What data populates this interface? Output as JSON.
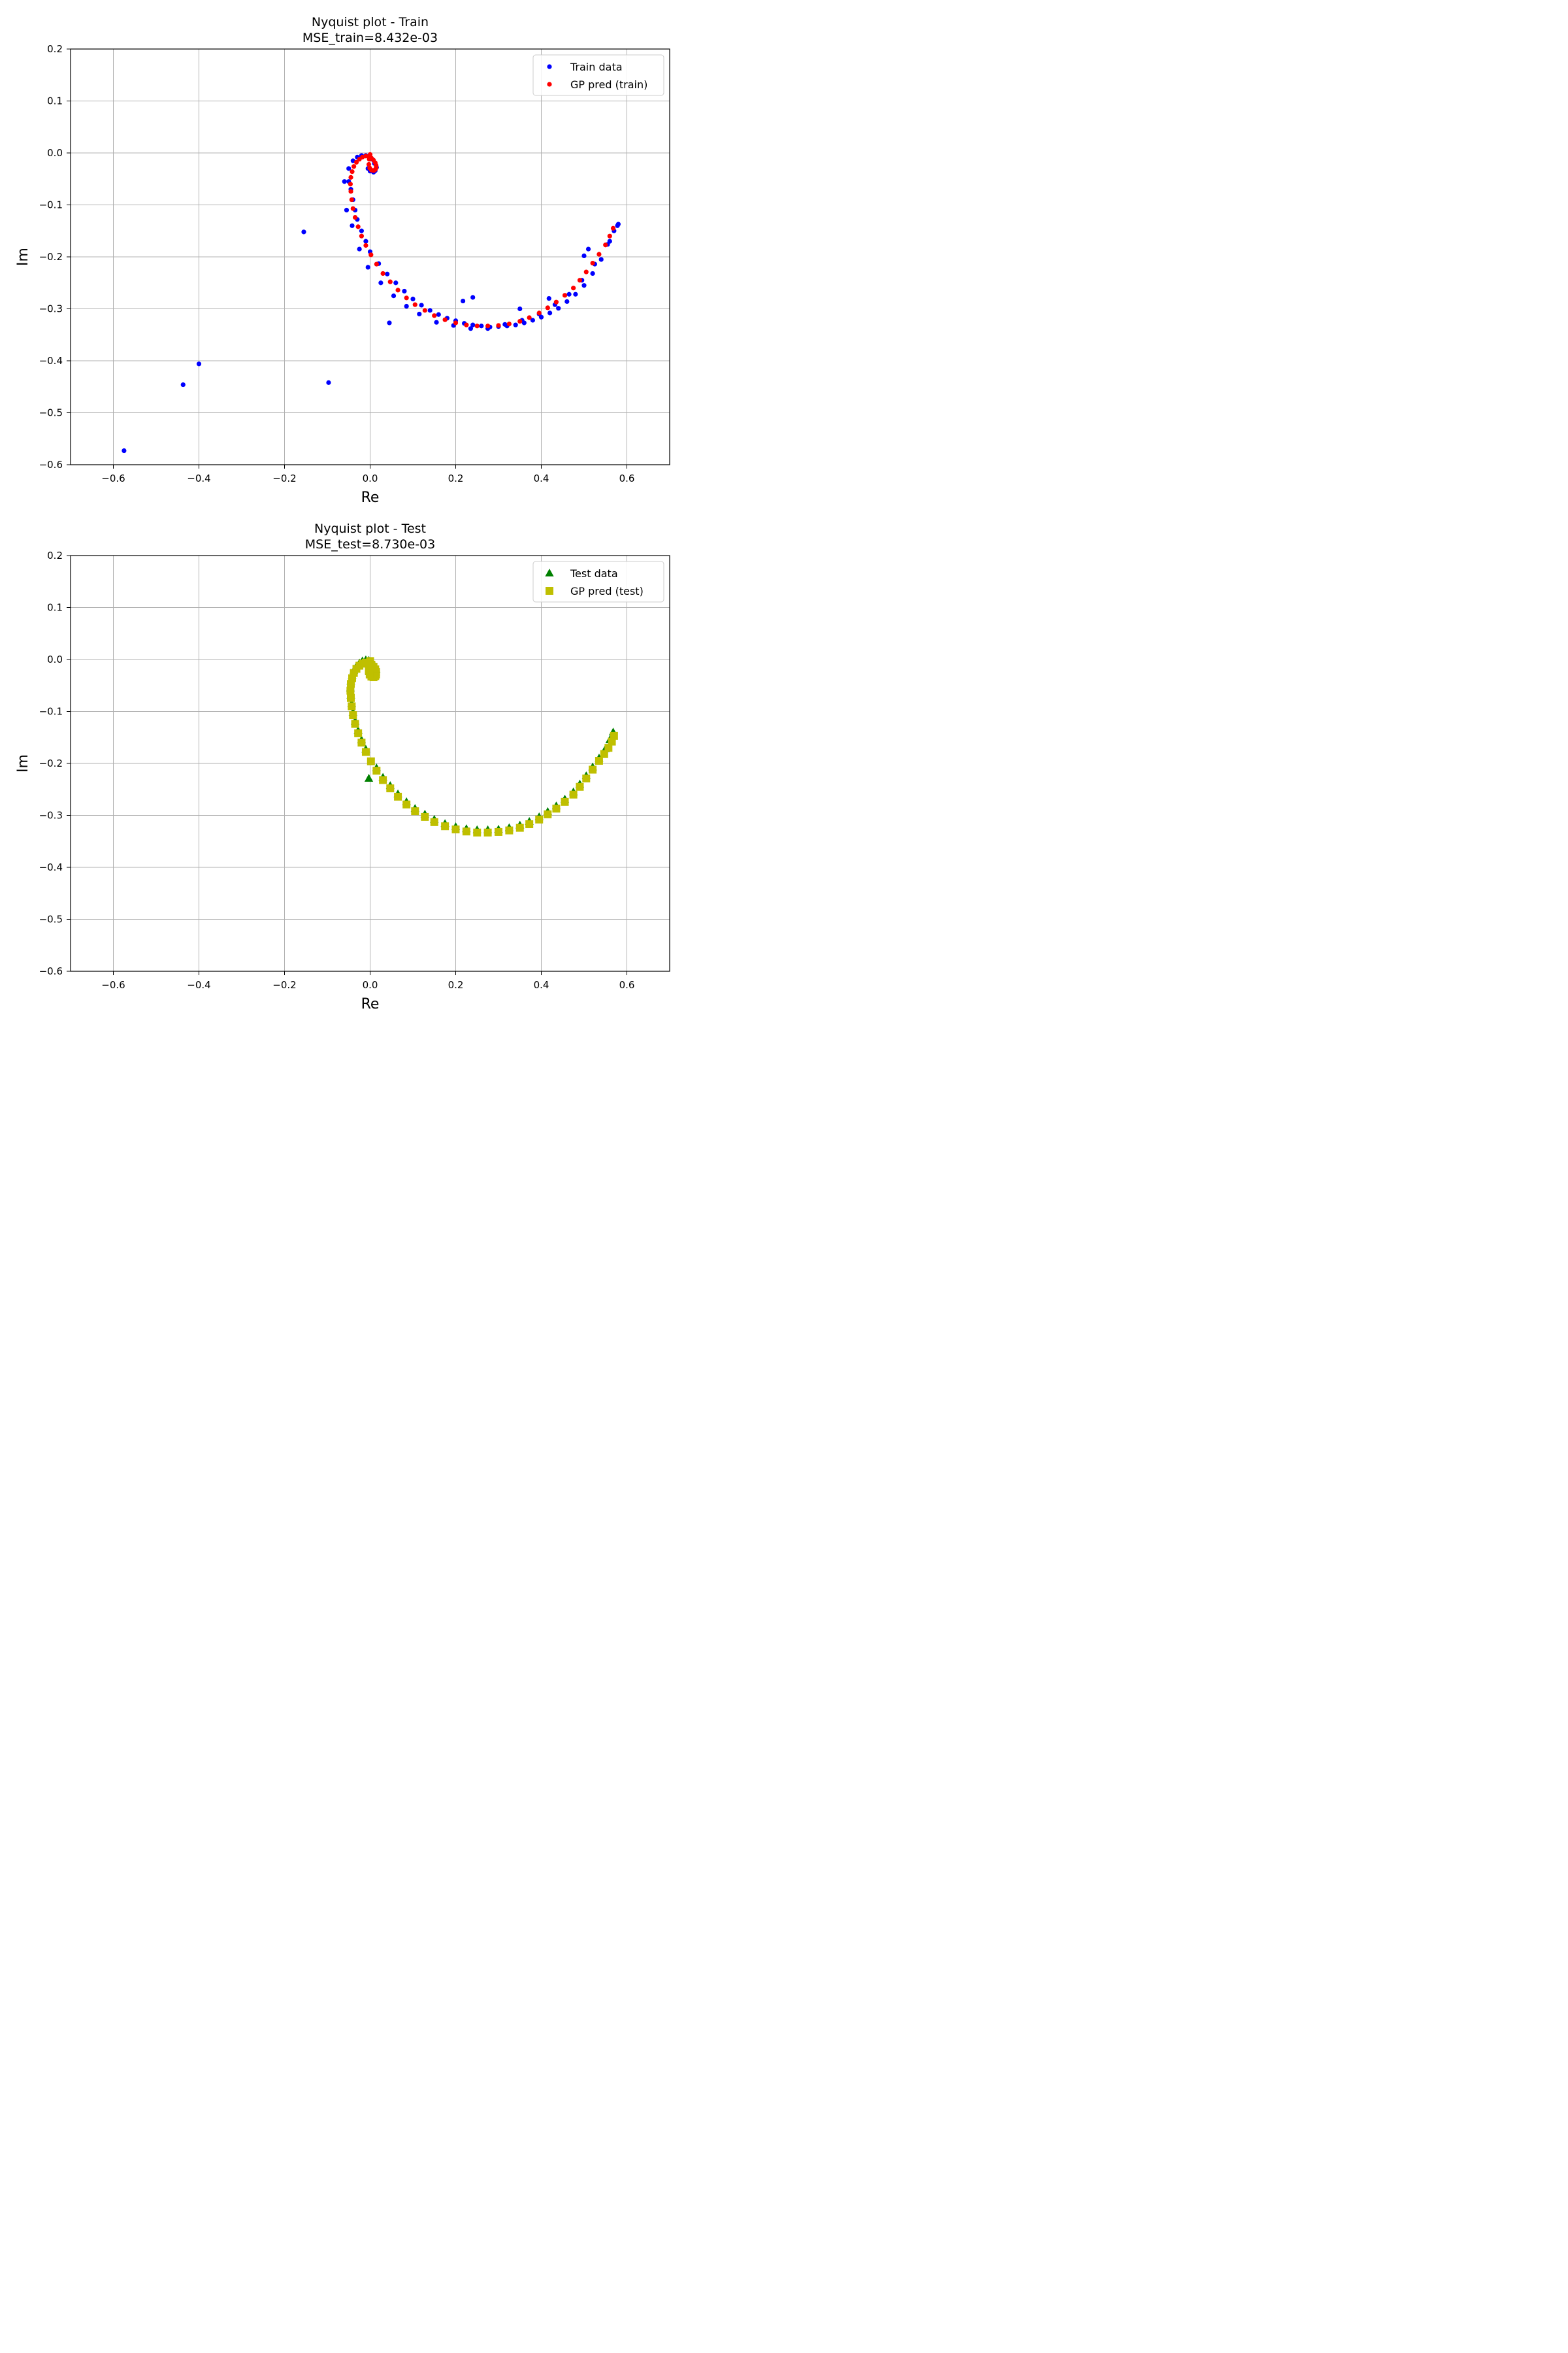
{
  "chart_data": [
    {
      "type": "scatter",
      "title": "Nyquist plot - Train",
      "subtitle": "MSE_train=8.432e-03",
      "xlabel": "Re",
      "ylabel": "Im",
      "xlim": [
        -0.7,
        0.7
      ],
      "ylim": [
        -0.6,
        0.2
      ],
      "xticks": [
        -0.6,
        -0.4,
        -0.2,
        0.0,
        0.2,
        0.4,
        0.6
      ],
      "xtick_labels": [
        "−0.6",
        "−0.4",
        "−0.2",
        "0.0",
        "0.2",
        "0.4",
        "0.6"
      ],
      "yticks": [
        0.2,
        0.1,
        0.0,
        -0.1,
        -0.2,
        -0.3,
        -0.4,
        -0.5,
        -0.6
      ],
      "ytick_labels": [
        "0.2",
        "0.1",
        "0.0",
        "−0.1",
        "−0.2",
        "−0.3",
        "−0.4",
        "−0.5",
        "−0.6"
      ],
      "grid": true,
      "legend_position": "top-right",
      "series": [
        {
          "name": "Train data",
          "marker": "circle",
          "color": "#0000ff",
          "x": [
            -0.575,
            -0.437,
            -0.4,
            -0.155,
            -0.097,
            0.045,
            0.217,
            0.24,
            0.35,
            0.418,
            0.5,
            0.51,
            0.58,
            0.57,
            0.56,
            0.54,
            0.52,
            0.5,
            0.48,
            0.46,
            0.44,
            0.42,
            0.4,
            0.38,
            0.36,
            0.34,
            0.32,
            0.3,
            0.28,
            0.26,
            0.24,
            0.22,
            0.2,
            0.18,
            0.16,
            0.14,
            0.12,
            0.1,
            0.08,
            0.06,
            0.04,
            0.02,
            0.0,
            -0.01,
            -0.02,
            -0.03,
            -0.035,
            -0.04,
            -0.045,
            -0.05,
            -0.055,
            -0.06,
            -0.05,
            -0.04,
            -0.03,
            -0.02,
            -0.01,
            0.0,
            0.005,
            0.01,
            0.015,
            0.012,
            0.008,
            0.0,
            -0.005,
            0.578,
            0.555,
            0.525,
            0.495,
            0.465,
            0.432,
            0.395,
            0.355,
            0.315,
            0.275,
            0.235,
            0.195,
            0.155,
            0.115,
            0.085,
            0.055,
            0.025,
            -0.005,
            -0.025,
            -0.042
          ],
          "y": [
            -0.573,
            -0.446,
            -0.406,
            -0.152,
            -0.442,
            -0.327,
            -0.285,
            -0.278,
            -0.3,
            -0.28,
            -0.198,
            -0.185,
            -0.137,
            -0.15,
            -0.17,
            -0.205,
            -0.232,
            -0.255,
            -0.272,
            -0.286,
            -0.299,
            -0.308,
            -0.316,
            -0.322,
            -0.327,
            -0.331,
            -0.333,
            -0.334,
            -0.335,
            -0.333,
            -0.331,
            -0.328,
            -0.323,
            -0.318,
            -0.311,
            -0.303,
            -0.293,
            -0.281,
            -0.266,
            -0.25,
            -0.233,
            -0.213,
            -0.19,
            -0.17,
            -0.15,
            -0.128,
            -0.11,
            -0.09,
            -0.07,
            -0.055,
            -0.11,
            -0.055,
            -0.03,
            -0.015,
            -0.008,
            -0.005,
            -0.005,
            -0.01,
            -0.012,
            -0.02,
            -0.028,
            -0.034,
            -0.037,
            -0.035,
            -0.03,
            -0.14,
            -0.176,
            -0.214,
            -0.245,
            -0.272,
            -0.292,
            -0.31,
            -0.322,
            -0.33,
            -0.338,
            -0.338,
            -0.332,
            -0.326,
            -0.31,
            -0.295,
            -0.275,
            -0.25,
            -0.22,
            -0.185,
            -0.14
          ]
        },
        {
          "name": "GP pred (train)",
          "marker": "circle",
          "color": "#ff0000",
          "x": [
            0.568,
            0.56,
            0.55,
            0.535,
            0.52,
            0.505,
            0.49,
            0.475,
            0.455,
            0.435,
            0.415,
            0.395,
            0.372,
            0.35,
            0.325,
            0.3,
            0.275,
            0.25,
            0.225,
            0.2,
            0.175,
            0.15,
            0.128,
            0.105,
            0.085,
            0.065,
            0.047,
            0.03,
            0.015,
            0.002,
            -0.01,
            -0.02,
            -0.028,
            -0.035,
            -0.04,
            -0.043,
            -0.045,
            -0.046,
            -0.045,
            -0.042,
            -0.038,
            -0.032,
            -0.025,
            -0.018,
            -0.01,
            -0.003,
            0.003,
            0.008,
            0.012,
            0.014,
            0.014,
            0.012,
            0.008,
            0.003,
            -0.001,
            -0.003,
            -0.002,
            0.0
          ],
          "y": [
            -0.145,
            -0.16,
            -0.177,
            -0.195,
            -0.212,
            -0.229,
            -0.245,
            -0.26,
            -0.274,
            -0.287,
            -0.298,
            -0.308,
            -0.317,
            -0.324,
            -0.329,
            -0.332,
            -0.333,
            -0.333,
            -0.331,
            -0.327,
            -0.321,
            -0.313,
            -0.303,
            -0.292,
            -0.279,
            -0.264,
            -0.248,
            -0.232,
            -0.214,
            -0.196,
            -0.178,
            -0.16,
            -0.142,
            -0.124,
            -0.107,
            -0.09,
            -0.074,
            -0.06,
            -0.047,
            -0.036,
            -0.026,
            -0.018,
            -0.012,
            -0.008,
            -0.006,
            -0.007,
            -0.01,
            -0.014,
            -0.019,
            -0.024,
            -0.029,
            -0.032,
            -0.034,
            -0.033,
            -0.029,
            -0.022,
            -0.012,
            -0.003
          ]
        }
      ]
    },
    {
      "type": "scatter",
      "title": "Nyquist plot - Test",
      "subtitle": "MSE_test=8.730e-03",
      "xlabel": "Re",
      "ylabel": "Im",
      "xlim": [
        -0.7,
        0.7
      ],
      "ylim": [
        -0.6,
        0.2
      ],
      "xticks": [
        -0.6,
        -0.4,
        -0.2,
        0.0,
        0.2,
        0.4,
        0.6
      ],
      "xtick_labels": [
        "−0.6",
        "−0.4",
        "−0.2",
        "0.0",
        "0.2",
        "0.4",
        "0.6"
      ],
      "yticks": [
        0.2,
        0.1,
        0.0,
        -0.1,
        -0.2,
        -0.3,
        -0.4,
        -0.5,
        -0.6
      ],
      "ytick_labels": [
        "0.2",
        "0.1",
        "0.0",
        "−0.1",
        "−0.2",
        "−0.3",
        "−0.4",
        "−0.5",
        "−0.6"
      ],
      "grid": true,
      "legend_position": "top-right",
      "series": [
        {
          "name": "Test data",
          "marker": "triangle",
          "color": "#008000",
          "x": [
            0.568,
            0.56,
            0.55,
            0.535,
            0.52,
            0.505,
            0.49,
            0.475,
            0.455,
            0.435,
            0.415,
            0.395,
            0.372,
            0.35,
            0.325,
            0.3,
            0.275,
            0.25,
            0.225,
            0.2,
            0.175,
            0.15,
            0.128,
            0.105,
            0.085,
            0.065,
            0.047,
            0.03,
            0.015,
            -0.003,
            -0.01,
            -0.02,
            -0.028,
            -0.035,
            -0.04,
            -0.043,
            -0.045,
            -0.046,
            -0.045,
            -0.042,
            -0.038,
            -0.032,
            -0.025,
            -0.018,
            -0.01,
            -0.003,
            0.003,
            0.008,
            0.012,
            0.014,
            0.012,
            0.008,
            0.003,
            -0.001
          ],
          "y": [
            -0.14,
            -0.155,
            -0.172,
            -0.19,
            -0.207,
            -0.224,
            -0.24,
            -0.255,
            -0.269,
            -0.282,
            -0.293,
            -0.303,
            -0.312,
            -0.319,
            -0.324,
            -0.327,
            -0.328,
            -0.328,
            -0.326,
            -0.322,
            -0.316,
            -0.308,
            -0.298,
            -0.287,
            -0.274,
            -0.259,
            -0.243,
            -0.227,
            -0.209,
            -0.229,
            -0.173,
            -0.155,
            -0.137,
            -0.119,
            -0.102,
            -0.085,
            -0.069,
            -0.055,
            -0.042,
            -0.031,
            -0.021,
            -0.013,
            -0.007,
            -0.003,
            -0.001,
            -0.002,
            -0.005,
            -0.009,
            -0.014,
            -0.019,
            -0.024,
            -0.027,
            -0.028,
            -0.024
          ]
        },
        {
          "name": "GP pred (test)",
          "marker": "square",
          "color": "#bfbf00",
          "x": [
            0.57,
            0.565,
            0.557,
            0.547,
            0.535,
            0.52,
            0.505,
            0.49,
            0.475,
            0.455,
            0.435,
            0.415,
            0.395,
            0.372,
            0.35,
            0.325,
            0.3,
            0.275,
            0.25,
            0.225,
            0.2,
            0.175,
            0.15,
            0.128,
            0.105,
            0.085,
            0.065,
            0.047,
            0.03,
            0.015,
            0.002,
            -0.01,
            -0.02,
            -0.028,
            -0.035,
            -0.04,
            -0.043,
            -0.045,
            -0.046,
            -0.045,
            -0.042,
            -0.038,
            -0.032,
            -0.025,
            -0.018,
            -0.01,
            -0.003,
            0.003,
            0.008,
            0.012,
            0.014,
            0.014,
            0.012,
            0.008,
            0.003,
            -0.001,
            -0.003,
            -0.002,
            0.0
          ],
          "y": [
            -0.147,
            -0.158,
            -0.17,
            -0.182,
            -0.195,
            -0.212,
            -0.229,
            -0.245,
            -0.26,
            -0.274,
            -0.287,
            -0.298,
            -0.308,
            -0.317,
            -0.324,
            -0.329,
            -0.332,
            -0.333,
            -0.333,
            -0.331,
            -0.327,
            -0.321,
            -0.313,
            -0.303,
            -0.292,
            -0.279,
            -0.264,
            -0.248,
            -0.232,
            -0.214,
            -0.196,
            -0.178,
            -0.16,
            -0.142,
            -0.124,
            -0.107,
            -0.09,
            -0.074,
            -0.06,
            -0.047,
            -0.036,
            -0.026,
            -0.018,
            -0.012,
            -0.008,
            -0.006,
            -0.007,
            -0.01,
            -0.014,
            -0.019,
            -0.024,
            -0.029,
            -0.032,
            -0.034,
            -0.033,
            -0.029,
            -0.022,
            -0.012,
            -0.003
          ]
        }
      ]
    }
  ]
}
